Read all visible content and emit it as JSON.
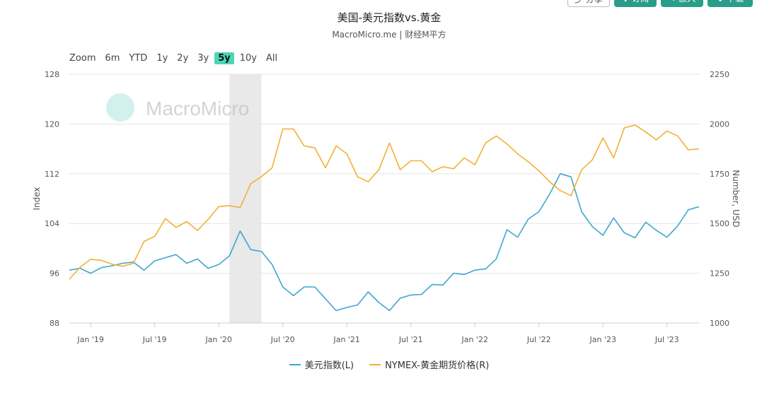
{
  "toolbar": {
    "share_label": "分享",
    "subscribe_label": "订阅",
    "embed_label": "嵌入",
    "download_label": "下载"
  },
  "range_selector": {
    "label": "Zoom",
    "options": [
      "6m",
      "YTD",
      "1y",
      "2y",
      "3y",
      "5y",
      "10y",
      "All"
    ],
    "active": "5y"
  },
  "watermark": "MacroMicro",
  "colors": {
    "usd_index": "#3fa7cf",
    "gold": "#f2b134",
    "shade": "#e9e9e9",
    "grid": "#e6e6e6",
    "watermark": "#7fd8cb"
  },
  "chart_data": {
    "type": "line",
    "title": "美国-美元指数vs.黄金",
    "subtitle": "MacroMicro.me | 财经M平方",
    "x_range": [
      "2018-11",
      "2023-10"
    ],
    "x_ticks": [
      {
        "date": "2019-01",
        "label": "Jan '19"
      },
      {
        "date": "2019-07",
        "label": "Jul '19"
      },
      {
        "date": "2020-01",
        "label": "Jan '20"
      },
      {
        "date": "2020-07",
        "label": "Jul '20"
      },
      {
        "date": "2021-01",
        "label": "Jan '21"
      },
      {
        "date": "2021-07",
        "label": "Jul '21"
      },
      {
        "date": "2022-01",
        "label": "Jan '22"
      },
      {
        "date": "2022-07",
        "label": "Jul '22"
      },
      {
        "date": "2023-01",
        "label": "Jan '23"
      },
      {
        "date": "2023-07",
        "label": "Jul '23"
      }
    ],
    "recession_shade": [
      "2020-02",
      "2020-05"
    ],
    "y_left": {
      "label": "Index",
      "range": [
        88,
        128
      ],
      "ticks": [
        88,
        96,
        104,
        112,
        120,
        128
      ]
    },
    "y_right": {
      "label": "Number, USD",
      "range": [
        1000,
        2250
      ],
      "ticks": [
        1000,
        1250,
        1500,
        1750,
        2000,
        2250
      ]
    },
    "legend_placement": "bottom-center",
    "grid": true,
    "series": [
      {
        "name": "美元指数(L)",
        "axis": "left",
        "points": [
          [
            "2018-11",
            96.5
          ],
          [
            "2018-12",
            96.8
          ],
          [
            "2019-01",
            96.0
          ],
          [
            "2019-02",
            96.9
          ],
          [
            "2019-03",
            97.2
          ],
          [
            "2019-04",
            97.6
          ],
          [
            "2019-05",
            97.8
          ],
          [
            "2019-06",
            96.5
          ],
          [
            "2019-07",
            98.0
          ],
          [
            "2019-08",
            98.5
          ],
          [
            "2019-09",
            99.0
          ],
          [
            "2019-10",
            97.6
          ],
          [
            "2019-11",
            98.3
          ],
          [
            "2019-12",
            96.8
          ],
          [
            "2020-01",
            97.4
          ],
          [
            "2020-02",
            98.8
          ],
          [
            "2020-03",
            102.8
          ],
          [
            "2020-04",
            99.8
          ],
          [
            "2020-05",
            99.5
          ],
          [
            "2020-06",
            97.4
          ],
          [
            "2020-07",
            93.8
          ],
          [
            "2020-08",
            92.4
          ],
          [
            "2020-09",
            93.8
          ],
          [
            "2020-10",
            93.8
          ],
          [
            "2020-11",
            91.9
          ],
          [
            "2020-12",
            90.0
          ],
          [
            "2021-01",
            90.5
          ],
          [
            "2021-02",
            90.9
          ],
          [
            "2021-03",
            93.0
          ],
          [
            "2021-04",
            91.3
          ],
          [
            "2021-05",
            90.0
          ],
          [
            "2021-06",
            92.0
          ],
          [
            "2021-07",
            92.5
          ],
          [
            "2021-08",
            92.6
          ],
          [
            "2021-09",
            94.2
          ],
          [
            "2021-10",
            94.1
          ],
          [
            "2021-11",
            96.0
          ],
          [
            "2021-12",
            95.8
          ],
          [
            "2022-01",
            96.5
          ],
          [
            "2022-02",
            96.7
          ],
          [
            "2022-03",
            98.3
          ],
          [
            "2022-04",
            103.0
          ],
          [
            "2022-05",
            101.8
          ],
          [
            "2022-06",
            104.7
          ],
          [
            "2022-07",
            105.9
          ],
          [
            "2022-08",
            108.7
          ],
          [
            "2022-09",
            112.0
          ],
          [
            "2022-10",
            111.5
          ],
          [
            "2022-11",
            105.9
          ],
          [
            "2022-12",
            103.5
          ],
          [
            "2023-01",
            102.1
          ],
          [
            "2023-02",
            104.9
          ],
          [
            "2023-03",
            102.5
          ],
          [
            "2023-04",
            101.7
          ],
          [
            "2023-05",
            104.2
          ],
          [
            "2023-06",
            102.9
          ],
          [
            "2023-07",
            101.8
          ],
          [
            "2023-08",
            103.6
          ],
          [
            "2023-09",
            106.2
          ],
          [
            "2023-10",
            106.7
          ]
        ]
      },
      {
        "name": "NYMEX-黄金期货价格(R)",
        "axis": "right",
        "points": [
          [
            "2018-11",
            1220
          ],
          [
            "2018-12",
            1280
          ],
          [
            "2019-01",
            1320
          ],
          [
            "2019-02",
            1315
          ],
          [
            "2019-03",
            1295
          ],
          [
            "2019-04",
            1285
          ],
          [
            "2019-05",
            1300
          ],
          [
            "2019-06",
            1410
          ],
          [
            "2019-07",
            1435
          ],
          [
            "2019-08",
            1525
          ],
          [
            "2019-09",
            1480
          ],
          [
            "2019-10",
            1510
          ],
          [
            "2019-11",
            1465
          ],
          [
            "2019-12",
            1520
          ],
          [
            "2020-01",
            1585
          ],
          [
            "2020-02",
            1590
          ],
          [
            "2020-03",
            1580
          ],
          [
            "2020-04",
            1700
          ],
          [
            "2020-05",
            1735
          ],
          [
            "2020-06",
            1780
          ],
          [
            "2020-07",
            1975
          ],
          [
            "2020-08",
            1975
          ],
          [
            "2020-09",
            1890
          ],
          [
            "2020-10",
            1880
          ],
          [
            "2020-11",
            1780
          ],
          [
            "2020-12",
            1890
          ],
          [
            "2021-01",
            1850
          ],
          [
            "2021-02",
            1735
          ],
          [
            "2021-03",
            1710
          ],
          [
            "2021-04",
            1770
          ],
          [
            "2021-05",
            1905
          ],
          [
            "2021-06",
            1770
          ],
          [
            "2021-07",
            1815
          ],
          [
            "2021-08",
            1815
          ],
          [
            "2021-09",
            1760
          ],
          [
            "2021-10",
            1785
          ],
          [
            "2021-11",
            1775
          ],
          [
            "2021-12",
            1830
          ],
          [
            "2022-01",
            1795
          ],
          [
            "2022-02",
            1905
          ],
          [
            "2022-03",
            1940
          ],
          [
            "2022-04",
            1900
          ],
          [
            "2022-05",
            1850
          ],
          [
            "2022-06",
            1810
          ],
          [
            "2022-07",
            1765
          ],
          [
            "2022-08",
            1710
          ],
          [
            "2022-09",
            1665
          ],
          [
            "2022-10",
            1640
          ],
          [
            "2022-11",
            1770
          ],
          [
            "2022-12",
            1820
          ],
          [
            "2023-01",
            1930
          ],
          [
            "2023-02",
            1830
          ],
          [
            "2023-03",
            1980
          ],
          [
            "2023-04",
            1995
          ],
          [
            "2023-05",
            1960
          ],
          [
            "2023-06",
            1920
          ],
          [
            "2023-07",
            1965
          ],
          [
            "2023-08",
            1940
          ],
          [
            "2023-09",
            1870
          ],
          [
            "2023-10",
            1875
          ]
        ]
      }
    ]
  }
}
